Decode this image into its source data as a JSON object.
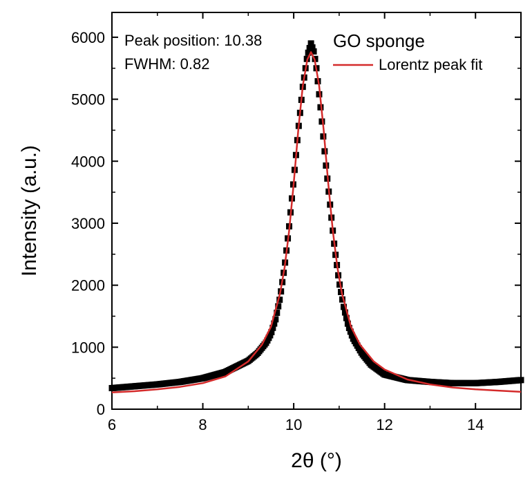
{
  "chart_data": {
    "type": "scatter",
    "xlabel": "2θ (°)",
    "ylabel": "Intensity (a.u.)",
    "xlim": [
      6,
      15
    ],
    "ylim": [
      0,
      6400
    ],
    "x_ticks": [
      6,
      8,
      10,
      12,
      14
    ],
    "y_ticks": [
      0,
      1000,
      2000,
      3000,
      4000,
      5000,
      6000
    ],
    "grid": false,
    "legend_position": "top-right",
    "legend_title": "GO sponge",
    "annotations": [
      "Peak position: 10.38",
      "FWHM: 0.82"
    ],
    "colors": {
      "data": "#000000",
      "fit": "#d42a2a"
    },
    "series": [
      {
        "type": "scatter",
        "marker": "square",
        "x": [
          6.0,
          6.5,
          7.0,
          7.5,
          8.0,
          8.5,
          9.0,
          9.2,
          9.4,
          9.5,
          9.6,
          9.7,
          9.8,
          9.9,
          10.0,
          10.1,
          10.2,
          10.3,
          10.38,
          10.45,
          10.5,
          10.6,
          10.7,
          10.8,
          10.9,
          11.0,
          11.1,
          11.2,
          11.3,
          11.5,
          11.7,
          12.0,
          12.5,
          13.0,
          13.5,
          14.0,
          14.5,
          15.0
        ],
        "y": [
          340,
          370,
          400,
          440,
          500,
          600,
          780,
          900,
          1080,
          1220,
          1450,
          1800,
          2300,
          2950,
          3700,
          4500,
          5200,
          5700,
          5900,
          5750,
          5500,
          4800,
          4000,
          3300,
          2600,
          2050,
          1650,
          1350,
          1150,
          900,
          720,
          560,
          470,
          440,
          420,
          420,
          440,
          470
        ]
      },
      {
        "name": "Lorentz peak fit",
        "type": "line",
        "x": [
          6.0,
          6.5,
          7.0,
          7.5,
          8.0,
          8.5,
          9.0,
          9.3,
          9.5,
          9.7,
          9.8,
          9.9,
          10.0,
          10.1,
          10.2,
          10.3,
          10.38,
          10.46,
          10.56,
          10.66,
          10.76,
          10.86,
          10.96,
          11.06,
          11.26,
          11.46,
          11.76,
          12.0,
          12.5,
          13.0,
          13.5,
          14.0,
          14.5,
          15.0
        ],
        "y": [
          270,
          290,
          320,
          360,
          420,
          530,
          770,
          1040,
          1330,
          1870,
          2290,
          2880,
          3640,
          4500,
          5220,
          5640,
          5760,
          5640,
          5220,
          4500,
          3640,
          2880,
          2290,
          1870,
          1330,
          1040,
          770,
          640,
          480,
          400,
          350,
          320,
          300,
          280
        ]
      }
    ]
  }
}
